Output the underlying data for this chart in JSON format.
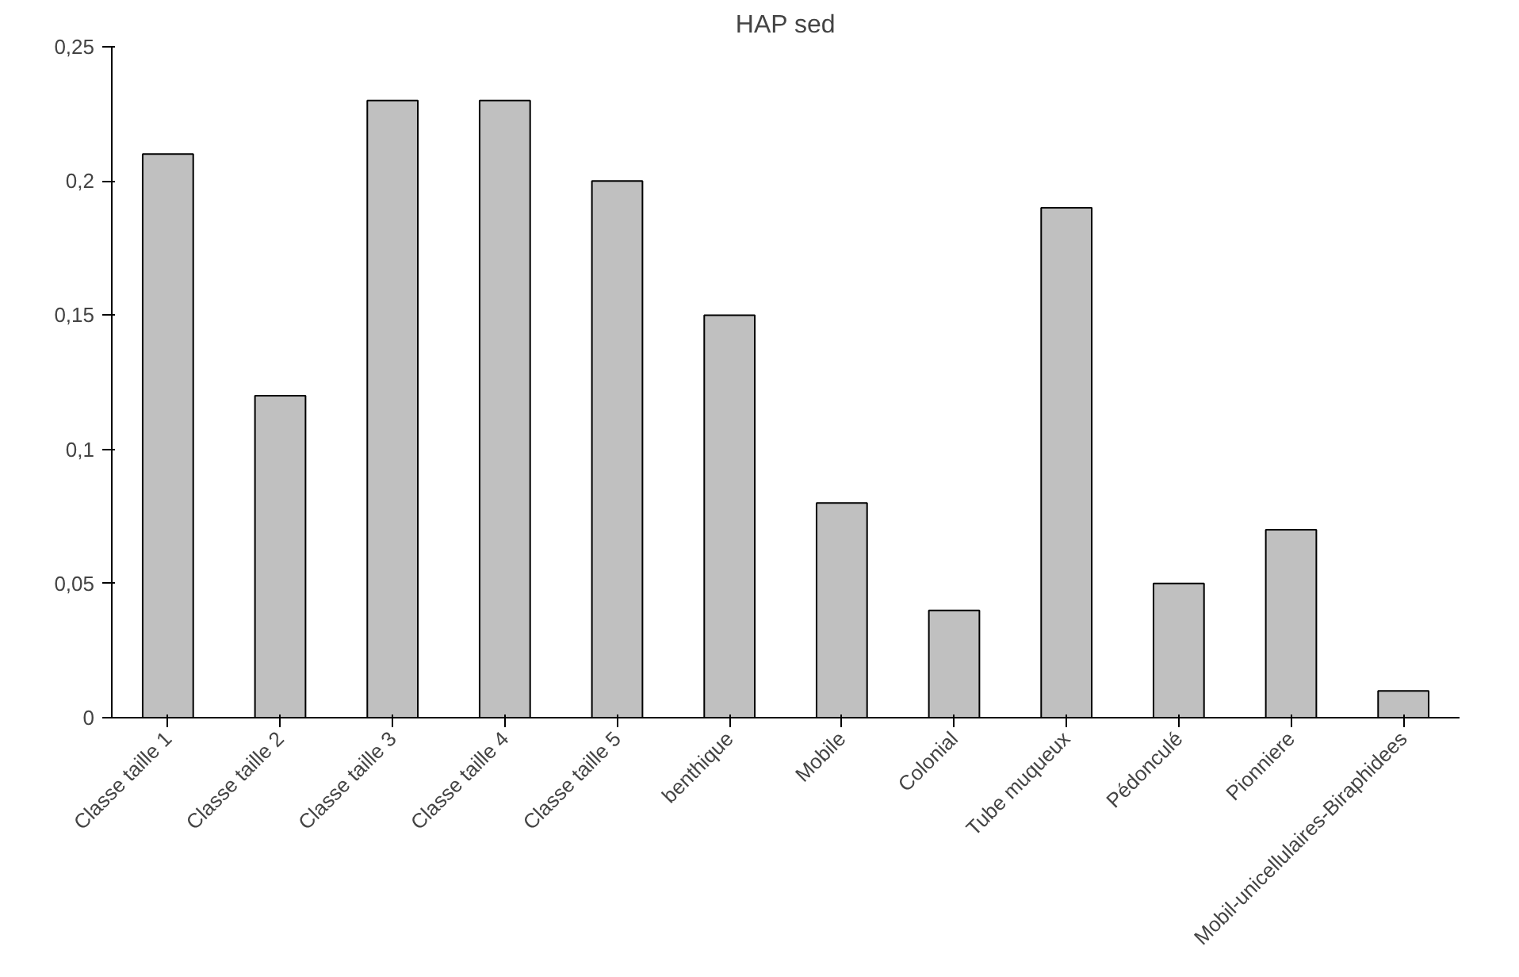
{
  "chart_data": {
    "type": "bar",
    "title": "HAP sed",
    "categories": [
      "Classe taille 1",
      "Classe taille 2",
      "Classe taille 3",
      "Classe taille 4",
      "Classe taille 5",
      "benthique",
      "Mobile",
      "Colonial",
      "Tube muqueux",
      "Pédonculé",
      "Pionniere",
      "Mobil-unicellulaires-Biraphidees"
    ],
    "values": [
      0.21,
      0.12,
      0.23,
      0.23,
      0.2,
      0.15,
      0.08,
      0.04,
      0.19,
      0.05,
      0.07,
      0.01
    ],
    "color": "#c0c0c0",
    "ylim": [
      0,
      0.25
    ],
    "yticks": [
      0,
      {
        "value": 0.05,
        "label": "0,05"
      },
      {
        "value": 0.1,
        "label": "0,1"
      },
      {
        "value": 0.15,
        "label": "0,15"
      },
      {
        "value": 0.2,
        "label": "0,2"
      },
      {
        "value": 0.25,
        "label": "0,25"
      }
    ],
    "grid": false
  }
}
